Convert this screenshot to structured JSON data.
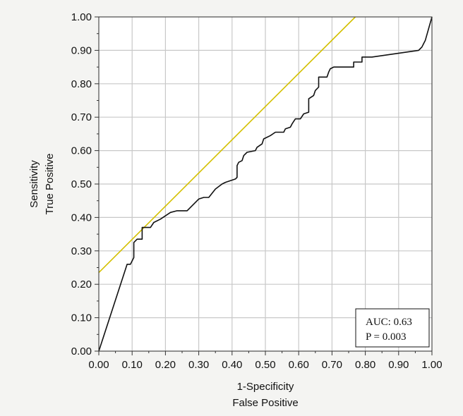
{
  "chart_data": {
    "type": "line",
    "xlabel": "1-Specificity",
    "xlabel2": "False Positive",
    "ylabel": "Sensitivity",
    "ylabel2": "True Positive",
    "xlim": [
      0,
      1
    ],
    "ylim": [
      0,
      1
    ],
    "grid": true,
    "x_ticks": [
      "0.00",
      "0.10",
      "0.20",
      "0.30",
      "0.40",
      "0.50",
      "0.60",
      "0.70",
      "0.80",
      "0.90",
      "1.00"
    ],
    "y_ticks": [
      "0.00",
      "0.10",
      "0.20",
      "0.30",
      "0.40",
      "0.50",
      "0.60",
      "0.70",
      "0.80",
      "0.90",
      "1.00"
    ],
    "colors": {
      "roc": "#111111",
      "reference": "#d4c000",
      "grid": "#c8c8c8",
      "plot_bg": "#ffffff"
    },
    "series": [
      {
        "values": [
          [
            0.0,
            0.0
          ],
          [
            0.085,
            0.26
          ],
          [
            0.095,
            0.26
          ],
          [
            0.1,
            0.27
          ],
          [
            0.105,
            0.28
          ],
          [
            0.105,
            0.325
          ],
          [
            0.115,
            0.335
          ],
          [
            0.13,
            0.335
          ],
          [
            0.13,
            0.37
          ],
          [
            0.155,
            0.37
          ],
          [
            0.165,
            0.385
          ],
          [
            0.185,
            0.395
          ],
          [
            0.215,
            0.415
          ],
          [
            0.235,
            0.42
          ],
          [
            0.265,
            0.42
          ],
          [
            0.275,
            0.43
          ],
          [
            0.3,
            0.455
          ],
          [
            0.315,
            0.46
          ],
          [
            0.33,
            0.46
          ],
          [
            0.35,
            0.485
          ],
          [
            0.37,
            0.5
          ],
          [
            0.38,
            0.505
          ],
          [
            0.395,
            0.51
          ],
          [
            0.41,
            0.515
          ],
          [
            0.415,
            0.52
          ],
          [
            0.415,
            0.555
          ],
          [
            0.42,
            0.565
          ],
          [
            0.43,
            0.57
          ],
          [
            0.435,
            0.585
          ],
          [
            0.445,
            0.595
          ],
          [
            0.47,
            0.6
          ],
          [
            0.475,
            0.61
          ],
          [
            0.49,
            0.62
          ],
          [
            0.495,
            0.635
          ],
          [
            0.515,
            0.645
          ],
          [
            0.53,
            0.655
          ],
          [
            0.555,
            0.655
          ],
          [
            0.56,
            0.665
          ],
          [
            0.575,
            0.67
          ],
          [
            0.58,
            0.68
          ],
          [
            0.59,
            0.695
          ],
          [
            0.605,
            0.695
          ],
          [
            0.615,
            0.71
          ],
          [
            0.63,
            0.715
          ],
          [
            0.63,
            0.755
          ],
          [
            0.645,
            0.765
          ],
          [
            0.65,
            0.78
          ],
          [
            0.66,
            0.79
          ],
          [
            0.66,
            0.82
          ],
          [
            0.685,
            0.82
          ],
          [
            0.69,
            0.835
          ],
          [
            0.695,
            0.845
          ],
          [
            0.705,
            0.85
          ],
          [
            0.765,
            0.85
          ],
          [
            0.765,
            0.865
          ],
          [
            0.79,
            0.865
          ],
          [
            0.79,
            0.88
          ],
          [
            0.82,
            0.88
          ],
          [
            0.96,
            0.9
          ],
          [
            0.965,
            0.905
          ],
          [
            0.97,
            0.91
          ],
          [
            0.975,
            0.92
          ],
          [
            0.98,
            0.93
          ],
          [
            1.0,
            1.0
          ]
        ]
      }
    ],
    "reference_line": {
      "x": [
        0.0,
        0.77
      ],
      "y": [
        0.235,
        1.0
      ]
    },
    "annotation": {
      "line1": "AUC:  0.63",
      "line2": "P = 0.003"
    }
  }
}
